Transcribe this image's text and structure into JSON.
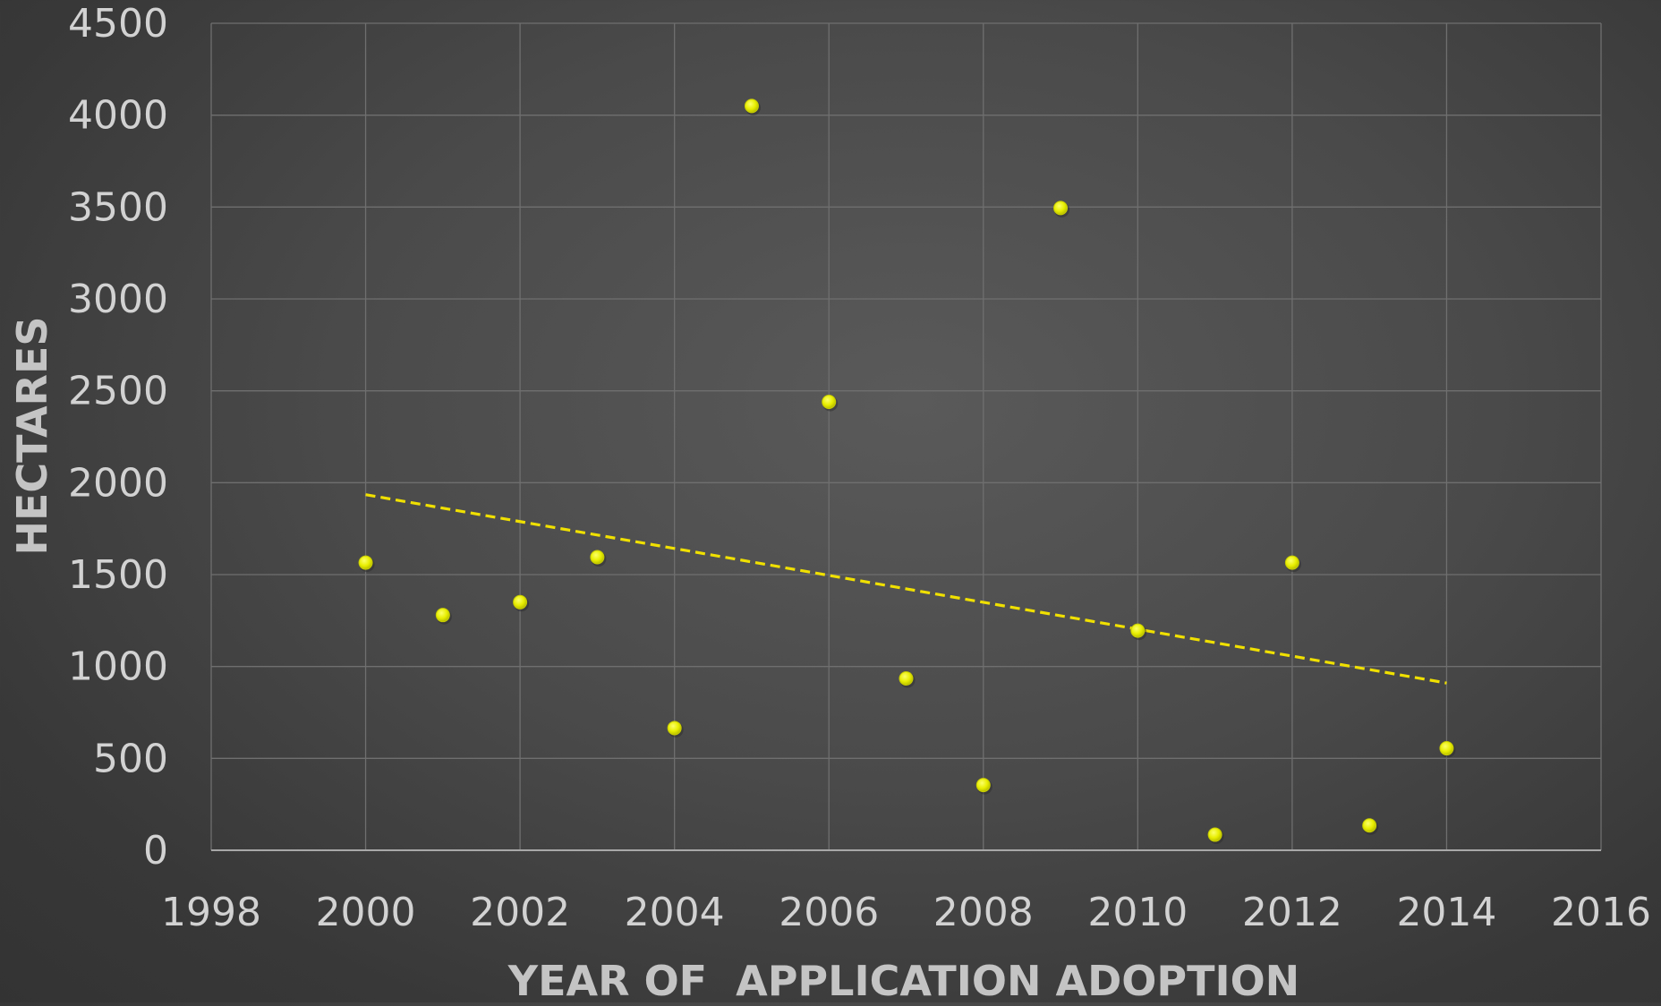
{
  "chart_data": {
    "type": "scatter",
    "title": "",
    "xlabel": "YEAR OF  APPLICATION ADOPTION",
    "ylabel": "HECTARES",
    "xlim": [
      1998,
      2016
    ],
    "ylim": [
      0,
      4500
    ],
    "x_ticks": [
      "1998",
      "2000",
      "2002",
      "2004",
      "2006",
      "2008",
      "2010",
      "2012",
      "2014",
      "2016"
    ],
    "y_ticks": [
      "0",
      "500",
      "1000",
      "1500",
      "2000",
      "2500",
      "3000",
      "3500",
      "4000",
      "4500"
    ],
    "grid": true,
    "legend": "none",
    "marker_color": "#f0f000",
    "trendline": {
      "type": "linear",
      "style": "dashed",
      "color": "#f0e000",
      "x": [
        2000,
        2014
      ],
      "y": [
        1935,
        910
      ]
    },
    "series": [
      {
        "x": [
          2000,
          2001,
          2002,
          2003,
          2004,
          2005,
          2006,
          2007,
          2008,
          2009,
          2010,
          2011,
          2012,
          2013,
          2014
        ],
        "y": [
          1565,
          1280,
          1350,
          1595,
          665,
          4050,
          2440,
          935,
          355,
          3495,
          1195,
          85,
          1565,
          135,
          555
        ]
      }
    ]
  }
}
